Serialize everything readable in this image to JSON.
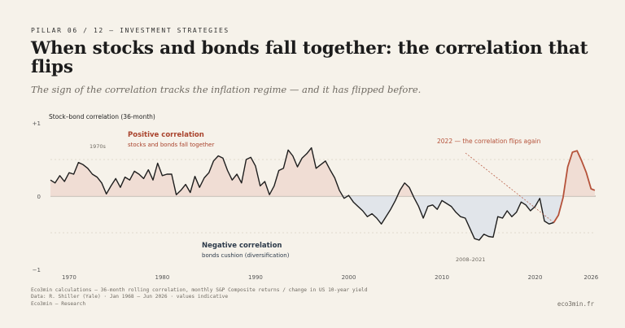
{
  "header": {
    "eyebrow": "PILLAR 06 / 12 — INVESTMENT STRATEGIES",
    "title": "When stocks and bonds fall together: the correlation that flips",
    "subtitle": "The sign of the correlation tracks the inflation regime — and it has flipped before."
  },
  "footer": {
    "source_line1": "Eco3min calculations — 36-month rolling correlation, monthly S&P Composite returns / change in US 10-year yield",
    "source_line2": "Data: R. Shiller (Yale) · Jan 1968 – Jun 2026 · values indicative",
    "brand": "Eco3min — Research",
    "site": "eco3min.fr"
  },
  "colors": {
    "background": "#f6f2ea",
    "line": "#1e1e1e",
    "highlight": "#b5523a",
    "positive_fill": "#efd9d0",
    "negative_fill": "#dde3ea",
    "positive_label": "#a9432d",
    "negative_label": "#2c3a4a"
  },
  "chart_data": {
    "type": "area",
    "title": "Stock–bond correlation (36-month)",
    "ylim": [
      -1,
      1
    ],
    "yticks": [
      {
        "value": 1,
        "label": "+1"
      },
      {
        "value": 0,
        "label": "0"
      },
      {
        "value": -1,
        "label": "−1"
      }
    ],
    "xlim": [
      1968,
      2026.5
    ],
    "xticks": [
      1970,
      1980,
      1990,
      2000,
      2010,
      2020,
      2026
    ],
    "grid_values": [
      0.5,
      -0.5
    ],
    "x": [
      1968.0,
      1968.5,
      1969.0,
      1969.5,
      1970.0,
      1970.5,
      1971.0,
      1971.5,
      1972.0,
      1972.5,
      1973.0,
      1973.5,
      1974.0,
      1974.5,
      1975.0,
      1975.5,
      1976.0,
      1976.5,
      1977.0,
      1977.5,
      1978.0,
      1978.5,
      1979.0,
      1979.5,
      1980.0,
      1980.5,
      1981.0,
      1981.5,
      1982.0,
      1982.5,
      1983.0,
      1983.5,
      1984.0,
      1984.5,
      1985.0,
      1985.5,
      1986.0,
      1986.5,
      1987.0,
      1987.5,
      1988.0,
      1988.5,
      1989.0,
      1989.5,
      1990.0,
      1990.5,
      1991.0,
      1991.5,
      1992.0,
      1992.5,
      1993.0,
      1993.5,
      1994.0,
      1994.5,
      1995.0,
      1995.5,
      1996.0,
      1996.5,
      1997.0,
      1997.5,
      1998.0,
      1998.5,
      1999.0,
      1999.5,
      2000.0,
      2000.5,
      2001.0,
      2001.5,
      2002.0,
      2002.5,
      2003.0,
      2003.5,
      2004.0,
      2004.5,
      2005.0,
      2005.5,
      2006.0,
      2006.5,
      2007.0,
      2007.5,
      2008.0,
      2008.5,
      2009.0,
      2009.5,
      2010.0,
      2010.5,
      2011.0,
      2011.5,
      2012.0,
      2012.5,
      2013.0,
      2013.5,
      2014.0,
      2014.5,
      2015.0,
      2015.5,
      2016.0,
      2016.5,
      2017.0,
      2017.5,
      2018.0,
      2018.5,
      2019.0,
      2019.5,
      2020.0,
      2020.5,
      2021.0,
      2021.5,
      2022.0,
      2022.5,
      2023.0,
      2023.5,
      2024.0,
      2024.5,
      2025.0,
      2025.5,
      2026.0,
      2026.4
    ],
    "y": [
      0.22,
      0.18,
      0.28,
      0.2,
      0.32,
      0.3,
      0.46,
      0.43,
      0.38,
      0.3,
      0.26,
      0.18,
      0.03,
      0.14,
      0.24,
      0.12,
      0.26,
      0.22,
      0.34,
      0.3,
      0.24,
      0.36,
      0.22,
      0.45,
      0.28,
      0.3,
      0.3,
      0.02,
      0.08,
      0.16,
      0.05,
      0.27,
      0.12,
      0.25,
      0.32,
      0.48,
      0.55,
      0.52,
      0.35,
      0.22,
      0.3,
      0.18,
      0.5,
      0.53,
      0.41,
      0.14,
      0.2,
      0.02,
      0.14,
      0.35,
      0.38,
      0.63,
      0.55,
      0.4,
      0.52,
      0.58,
      0.66,
      0.38,
      0.43,
      0.48,
      0.36,
      0.25,
      0.08,
      -0.03,
      0.01,
      -0.08,
      -0.14,
      -0.2,
      -0.28,
      -0.24,
      -0.3,
      -0.38,
      -0.28,
      -0.18,
      -0.06,
      0.08,
      0.18,
      0.12,
      -0.02,
      -0.14,
      -0.3,
      -0.14,
      -0.12,
      -0.18,
      -0.06,
      -0.1,
      -0.14,
      -0.22,
      -0.28,
      -0.3,
      -0.44,
      -0.58,
      -0.6,
      -0.52,
      -0.55,
      -0.56,
      -0.28,
      -0.3,
      -0.2,
      -0.28,
      -0.22,
      -0.08,
      -0.12,
      -0.2,
      -0.14,
      -0.03,
      -0.34,
      -0.38,
      -0.36,
      -0.26,
      -0.02,
      0.4,
      0.6,
      0.62,
      0.48,
      0.32,
      0.1,
      0.08
    ],
    "highlight_from_x": 2022.0,
    "annotations": {
      "positive_title": "Positive correlation",
      "positive_sub": "stocks and bonds fall together",
      "negative_title": "Negative correlation",
      "negative_sub": "bonds cushion (diversification)",
      "era_1970s": "1970s",
      "era_2008": "2008–2021",
      "flip": "2022 — the correlation flips again"
    }
  }
}
